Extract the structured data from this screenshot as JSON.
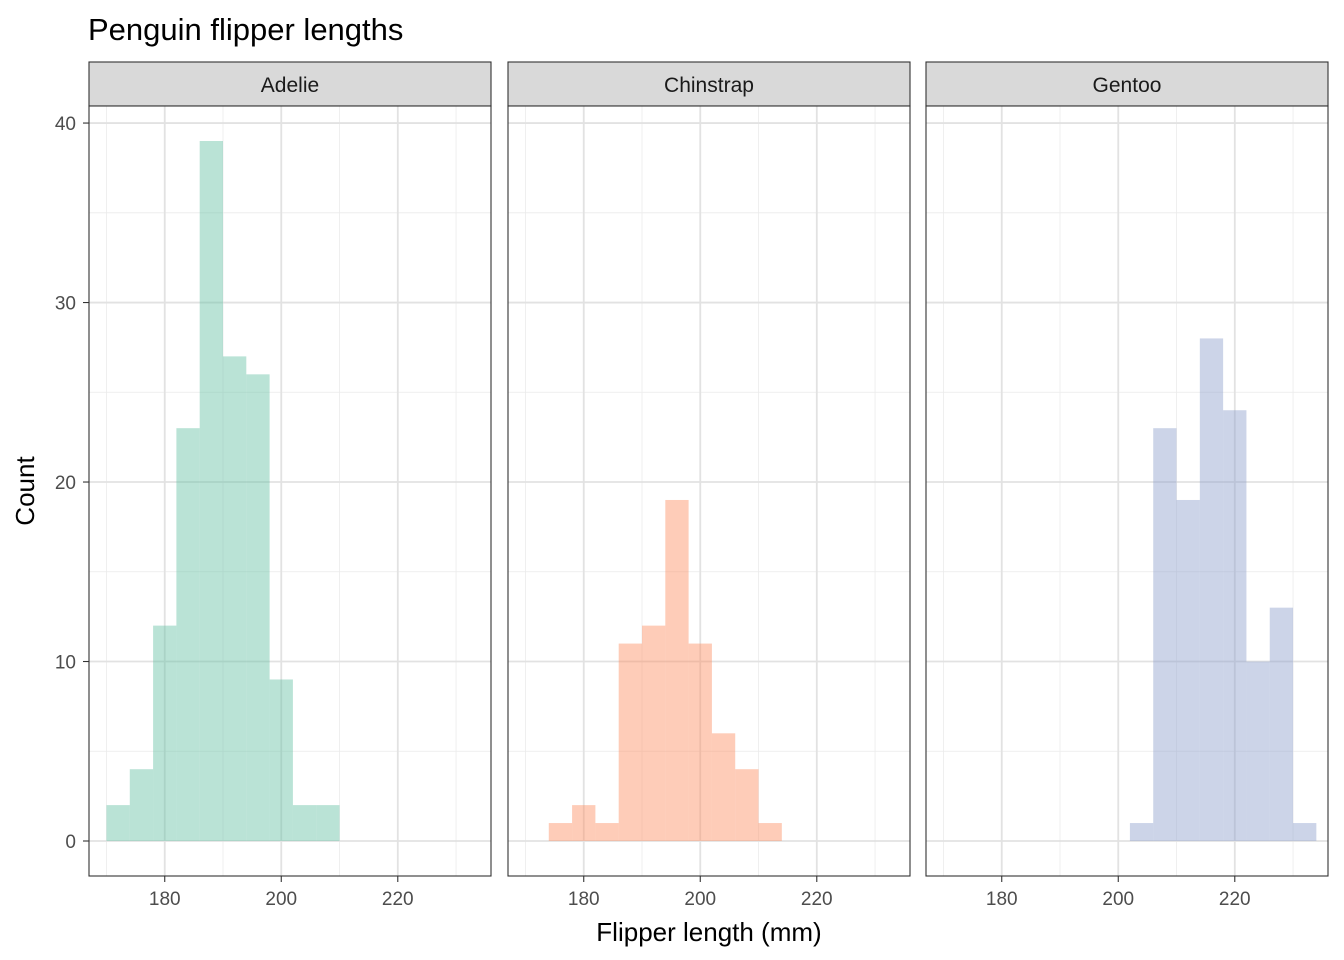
{
  "chart_data": {
    "type": "bar",
    "title": "Penguin flipper lengths",
    "xlabel": "Flipper length (mm)",
    "ylabel": "Count",
    "xlim": [
      167,
      236
    ],
    "ylim": [
      -1.95,
      40.95
    ],
    "x_ticks": [
      180,
      200,
      220
    ],
    "y_ticks": [
      0,
      10,
      20,
      30,
      40
    ],
    "grid": true,
    "bin_width": 4,
    "bin_start": 170,
    "panels": [
      {
        "name": "Adelie",
        "color": "#66c2a5",
        "bins": [
          {
            "x0": 170,
            "x1": 174,
            "count": 2
          },
          {
            "x0": 174,
            "x1": 178,
            "count": 4
          },
          {
            "x0": 178,
            "x1": 182,
            "count": 12
          },
          {
            "x0": 182,
            "x1": 186,
            "count": 23
          },
          {
            "x0": 186,
            "x1": 190,
            "count": 39
          },
          {
            "x0": 190,
            "x1": 194,
            "count": 27
          },
          {
            "x0": 194,
            "x1": 198,
            "count": 26
          },
          {
            "x0": 198,
            "x1": 202,
            "count": 9
          },
          {
            "x0": 202,
            "x1": 206,
            "count": 2
          },
          {
            "x0": 206,
            "x1": 210,
            "count": 2
          }
        ]
      },
      {
        "name": "Chinstrap",
        "color": "#fc8d62",
        "bins": [
          {
            "x0": 174,
            "x1": 178,
            "count": 1
          },
          {
            "x0": 178,
            "x1": 182,
            "count": 2
          },
          {
            "x0": 182,
            "x1": 186,
            "count": 1
          },
          {
            "x0": 186,
            "x1": 190,
            "count": 11
          },
          {
            "x0": 190,
            "x1": 194,
            "count": 12
          },
          {
            "x0": 194,
            "x1": 198,
            "count": 19
          },
          {
            "x0": 198,
            "x1": 202,
            "count": 11
          },
          {
            "x0": 202,
            "x1": 206,
            "count": 6
          },
          {
            "x0": 206,
            "x1": 210,
            "count": 4
          },
          {
            "x0": 210,
            "x1": 214,
            "count": 1
          }
        ]
      },
      {
        "name": "Gentoo",
        "color": "#8da0cb",
        "bins": [
          {
            "x0": 202,
            "x1": 206,
            "count": 1
          },
          {
            "x0": 206,
            "x1": 210,
            "count": 23
          },
          {
            "x0": 210,
            "x1": 214,
            "count": 19
          },
          {
            "x0": 214,
            "x1": 218,
            "count": 28
          },
          {
            "x0": 218,
            "x1": 222,
            "count": 24
          },
          {
            "x0": 222,
            "x1": 226,
            "count": 10
          },
          {
            "x0": 226,
            "x1": 230,
            "count": 13
          },
          {
            "x0": 230,
            "x1": 234,
            "count": 1
          }
        ]
      }
    ]
  }
}
